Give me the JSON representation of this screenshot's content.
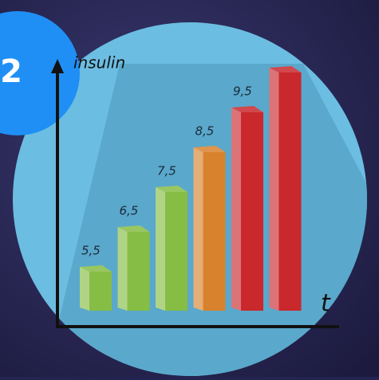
{
  "badge": "2",
  "chart_data": {
    "type": "bar",
    "y_label": "insulin",
    "x_label": "t",
    "values": [
      5.5,
      6.5,
      7.5,
      8.5,
      9.5,
      10.5
    ],
    "value_labels": [
      "5,5",
      "6,5",
      "7,5",
      "8,5",
      "9,5",
      null
    ],
    "colors": [
      "#86bd45",
      "#86bd45",
      "#86bd45",
      "#d9822e",
      "#c9282d",
      "#c9282d"
    ]
  }
}
